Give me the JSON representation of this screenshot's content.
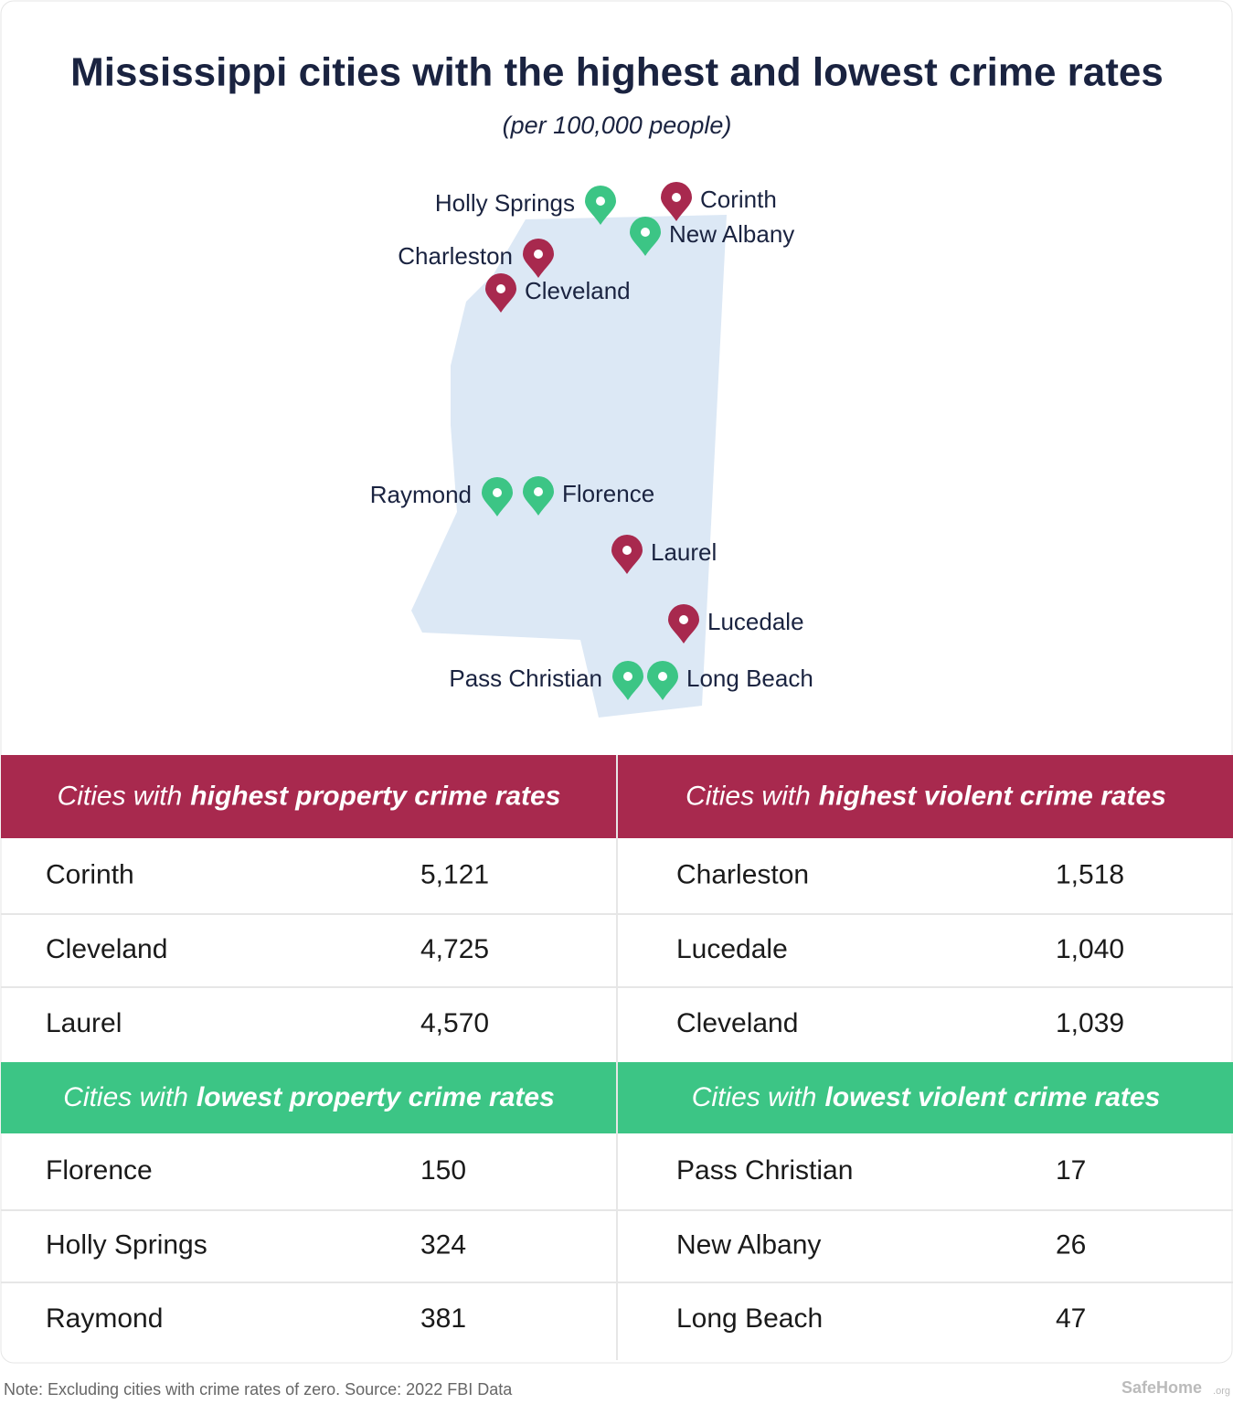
{
  "title": "Mississippi cities with the highest and lowest crime rates",
  "subtitle": "(per 100,000 people)",
  "map": {
    "fill": "#dce8f5",
    "pins": [
      {
        "label": "Holly Springs",
        "color": "#3cc585"
      },
      {
        "label": "Corinth",
        "color": "#a8294e"
      },
      {
        "label": "New Albany",
        "color": "#3cc585"
      },
      {
        "label": "Charleston",
        "color": "#a8294e"
      },
      {
        "label": "Cleveland",
        "color": "#a8294e"
      },
      {
        "label": "Raymond",
        "color": "#3cc585"
      },
      {
        "label": "Florence",
        "color": "#3cc585"
      },
      {
        "label": "Laurel",
        "color": "#a8294e"
      },
      {
        "label": "Lucedale",
        "color": "#a8294e"
      },
      {
        "label": "Pass Christian",
        "color": "#3cc585"
      },
      {
        "label": "Long Beach",
        "color": "#3cc585"
      }
    ]
  },
  "tables": [
    {
      "lead": "Cities with",
      "emphasis": "highest property crime rates",
      "color": "#a8294e",
      "rows": [
        [
          "Corinth",
          "5,121"
        ],
        [
          "Cleveland",
          "4,725"
        ],
        [
          "Laurel",
          "4,570"
        ]
      ]
    },
    {
      "lead": "Cities with",
      "emphasis": "highest violent crime rates",
      "color": "#a8294e",
      "rows": [
        [
          "Charleston",
          "1,518"
        ],
        [
          "Lucedale",
          "1,040"
        ],
        [
          "Cleveland",
          "1,039"
        ]
      ]
    },
    {
      "lead": "Cities with",
      "emphasis": "lowest property crime rates",
      "color": "#3cc585",
      "rows": [
        [
          "Florence",
          "150"
        ],
        [
          "Holly Springs",
          "324"
        ],
        [
          "Raymond",
          "381"
        ]
      ]
    },
    {
      "lead": "Cities with",
      "emphasis": "lowest violent crime rates",
      "color": "#3cc585",
      "rows": [
        [
          "Pass Christian",
          "17"
        ],
        [
          "New Albany",
          "26"
        ],
        [
          "Long Beach",
          "47"
        ]
      ]
    }
  ],
  "note": "Note: Excluding cities with crime rates of zero. Source: 2022 FBI Data",
  "logo": "SafeHome",
  "logo_suffix": ".org"
}
